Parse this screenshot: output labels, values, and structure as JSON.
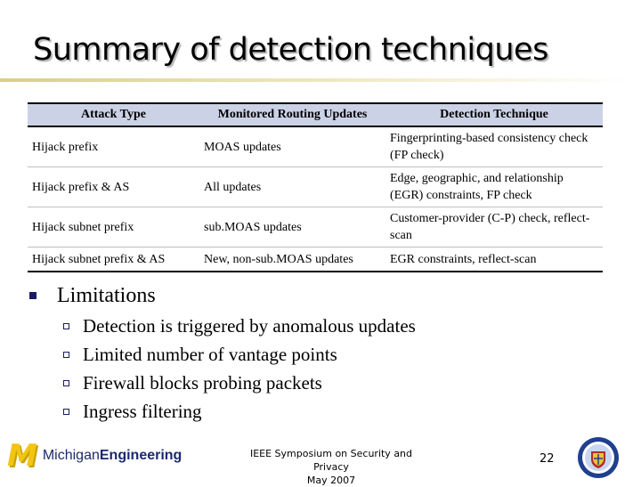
{
  "slide": {
    "title": "Summary of detection techniques",
    "page_number": "22"
  },
  "table": {
    "headers": [
      "Attack Type",
      "Monitored Routing Updates",
      "Detection Technique"
    ],
    "rows": [
      [
        "Hijack prefix",
        "MOAS updates",
        "Fingerprinting-based consistency check (FP check)"
      ],
      [
        "Hijack prefix & AS",
        "All updates",
        "Edge, geographic, and relationship (EGR) constraints, FP check"
      ],
      [
        "Hijack subnet prefix",
        "sub.MOAS updates",
        "Customer-provider (C-P) check, reflect-scan"
      ],
      [
        "Hijack subnet prefix & AS",
        "New, non-sub.MOAS updates",
        "EGR constraints, reflect-scan"
      ]
    ]
  },
  "limitations": {
    "heading": "Limitations",
    "items": [
      "Detection is triggered by anomalous updates",
      "Limited number of vantage points",
      "Firewall blocks probing packets",
      "Ingress filtering"
    ]
  },
  "footer": {
    "logo_mark": "M",
    "logo_word_1": "Michigan",
    "logo_word_2": "Engineering",
    "conference_line1": "IEEE Symposium on Security and Privacy",
    "conference_line2": "May 2007"
  },
  "colors": {
    "header_fill": "#ccd2e6",
    "bullet": "#1a1a66",
    "logo_blue": "#1c2a6e",
    "logo_maize": "#f2c512",
    "title_rule": "#d9cf8a"
  },
  "icons": {
    "level1_bullet": "filled-square",
    "level2_bullet": "hollow-square",
    "seal": "university-seal"
  }
}
